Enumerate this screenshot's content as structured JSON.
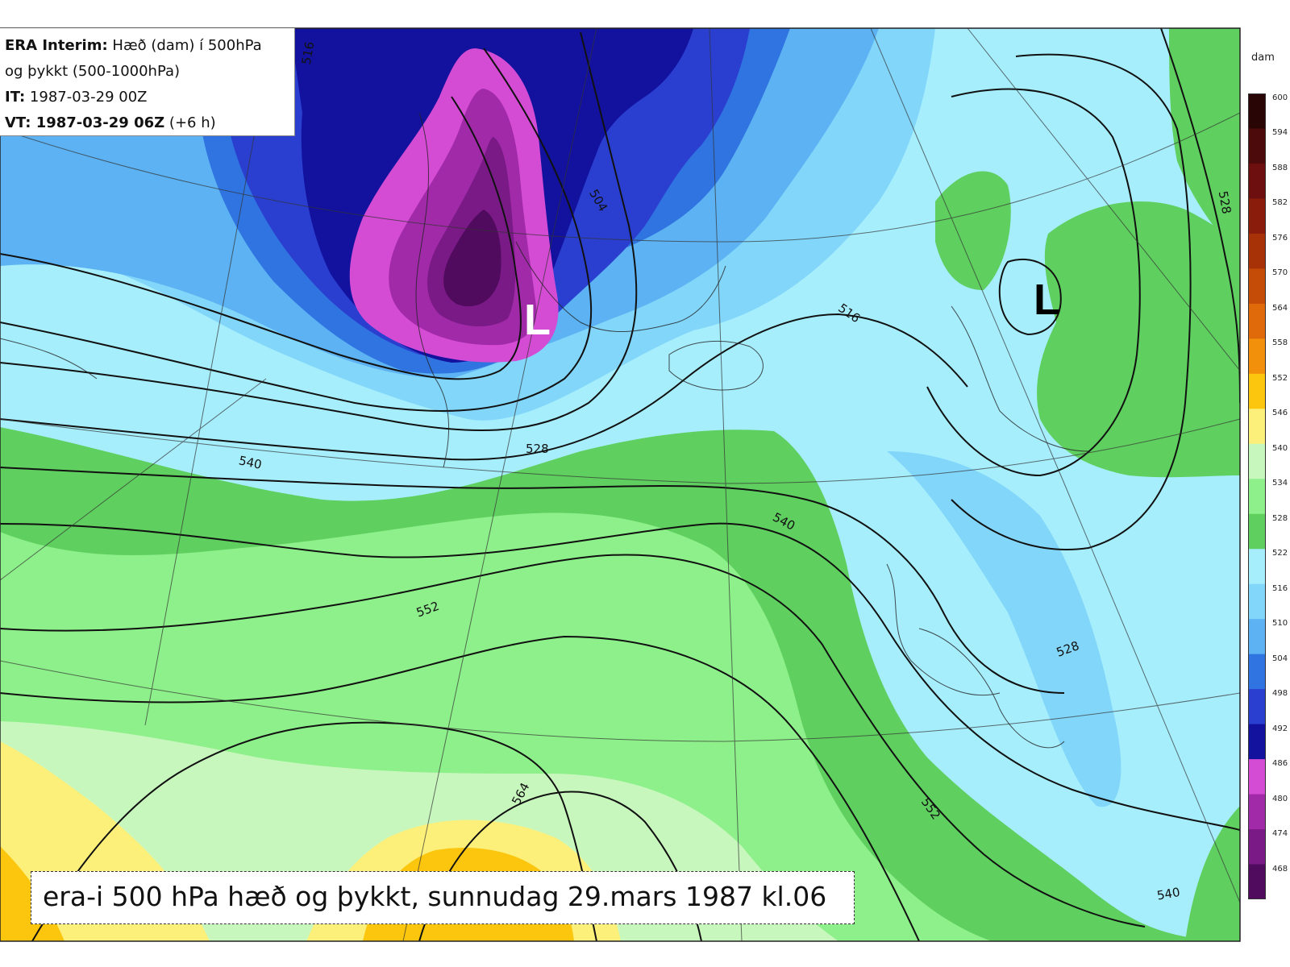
{
  "map": {
    "title_line1_bold": "ERA Interim:",
    "title_line1_rest": " Hæð (dam) í 500hPa",
    "title_line2": "og þykkt (500-1000hPa)",
    "it_label": "IT:",
    "it_value": " 1987-03-29 00Z",
    "vt_label": "VT: 1987-03-29 06Z",
    "vt_extra": " (+6 h)",
    "caption": "era-i 500 hPa hæð og þykkt, sunnudag 29.mars 1987 kl.06",
    "lows": [
      {
        "label": "L",
        "color": "#ffffff"
      },
      {
        "label": "L",
        "color": "#000000"
      }
    ],
    "contour_labels": [
      "516",
      "504",
      "516",
      "528",
      "540",
      "540",
      "552",
      "528",
      "564",
      "552",
      "540",
      "528"
    ]
  },
  "colorbar": {
    "unit": "dam",
    "levels": [
      "600",
      "594",
      "588",
      "582",
      "576",
      "570",
      "564",
      "558",
      "552",
      "546",
      "540",
      "534",
      "528",
      "522",
      "516",
      "510",
      "504",
      "498",
      "492",
      "486",
      "480",
      "474",
      "468"
    ],
    "colors": [
      "#2a0505",
      "#4d0a0a",
      "#6e0f0f",
      "#8a1c0c",
      "#a83208",
      "#c54c06",
      "#e06a0a",
      "#f2900c",
      "#fcc50e",
      "#fcf07a",
      "#c8f7be",
      "#8ef08a",
      "#5fcf5f",
      "#a6eefc",
      "#82d6fa",
      "#5cb2f2",
      "#2f74e0",
      "#2a3fd0",
      "#12129e",
      "#d44bd4",
      "#a02aa8",
      "#7a1a86",
      "#500a5e"
    ]
  }
}
